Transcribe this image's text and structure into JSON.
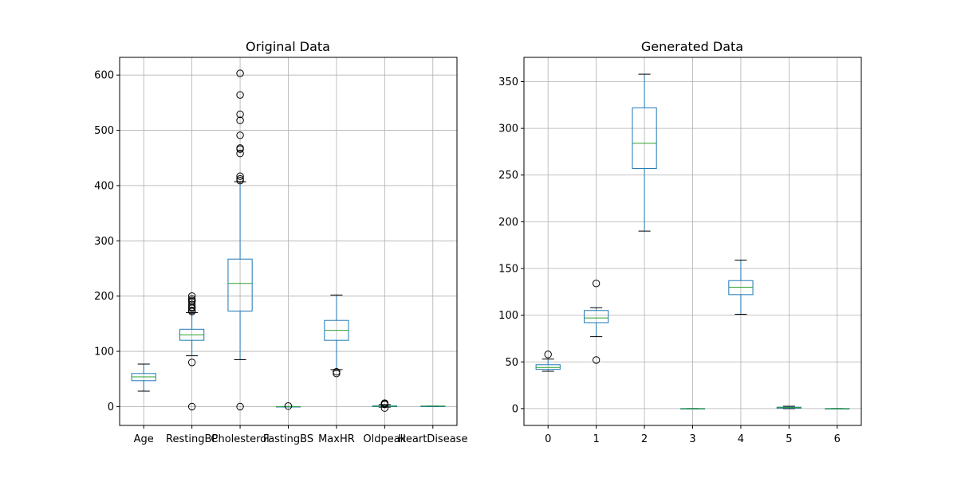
{
  "chart_data": [
    {
      "type": "boxplot",
      "title": "Original Data",
      "xlabel": "",
      "ylabel": "",
      "grid": true,
      "categories": [
        "Age",
        "RestingBP",
        "Cholesterol",
        "FastingBS",
        "MaxHR",
        "Oldpeak",
        "HeartDisease"
      ],
      "ylim": [
        -34,
        632
      ],
      "yticks": [
        0,
        100,
        200,
        300,
        400,
        500,
        600
      ],
      "box_color": "#1f77b4",
      "median_color": "#2ca02c",
      "boxes": [
        {
          "name": "Age",
          "whisker_low": 28,
          "q1": 47,
          "median": 54,
          "q3": 60,
          "whisker_high": 77,
          "outliers": []
        },
        {
          "name": "RestingBP",
          "whisker_low": 92,
          "q1": 120,
          "median": 130,
          "q3": 140,
          "whisker_high": 170,
          "outliers": [
            0,
            80,
            172,
            174,
            178,
            180,
            185,
            190,
            192,
            195,
            200
          ]
        },
        {
          "name": "Cholesterol",
          "whisker_low": 85,
          "q1": 173,
          "median": 223,
          "q3": 267,
          "whisker_high": 407,
          "outliers": [
            0,
            409,
            412,
            417,
            458,
            466,
            468,
            491,
            518,
            529,
            564,
            603
          ]
        },
        {
          "name": "FastingBS",
          "whisker_low": 0,
          "q1": 0,
          "median": 0,
          "q3": 0,
          "whisker_high": 0,
          "outliers": [
            1
          ]
        },
        {
          "name": "MaxHR",
          "whisker_low": 67,
          "q1": 120,
          "median": 138,
          "q3": 156,
          "whisker_high": 202,
          "outliers": [
            60,
            63
          ]
        },
        {
          "name": "Oldpeak",
          "whisker_low": -1,
          "q1": 0,
          "median": 0.6,
          "q3": 1.5,
          "whisker_high": 3.7,
          "outliers": [
            -2.6,
            4.0,
            4.4,
            5.6,
            6.2
          ]
        },
        {
          "name": "HeartDisease",
          "whisker_low": 0,
          "q1": 0,
          "median": 1,
          "q3": 1,
          "whisker_high": 1,
          "outliers": []
        }
      ]
    },
    {
      "type": "boxplot",
      "title": "Generated Data",
      "xlabel": "",
      "ylabel": "",
      "grid": true,
      "categories": [
        "0",
        "1",
        "2",
        "3",
        "4",
        "5",
        "6"
      ],
      "ylim": [
        -18,
        376
      ],
      "yticks": [
        0,
        50,
        100,
        150,
        200,
        250,
        300,
        350
      ],
      "box_color": "#1f77b4",
      "median_color": "#2ca02c",
      "boxes": [
        {
          "name": "0",
          "whisker_low": 40,
          "q1": 42,
          "median": 44,
          "q3": 47,
          "whisker_high": 53,
          "outliers": [
            58
          ]
        },
        {
          "name": "1",
          "whisker_low": 77,
          "q1": 92,
          "median": 97,
          "q3": 105,
          "whisker_high": 108,
          "outliers": [
            52,
            134
          ]
        },
        {
          "name": "2",
          "whisker_low": 190,
          "q1": 257,
          "median": 284,
          "q3": 322,
          "whisker_high": 358,
          "outliers": []
        },
        {
          "name": "3",
          "whisker_low": 0,
          "q1": 0,
          "median": 0,
          "q3": 0,
          "whisker_high": 0,
          "outliers": []
        },
        {
          "name": "4",
          "whisker_low": 101,
          "q1": 122,
          "median": 130,
          "q3": 137,
          "whisker_high": 159,
          "outliers": []
        },
        {
          "name": "5",
          "whisker_low": 0,
          "q1": 0.5,
          "median": 1,
          "q3": 1.5,
          "whisker_high": 2.5,
          "outliers": []
        },
        {
          "name": "6",
          "whisker_low": 0,
          "q1": 0,
          "median": 0,
          "q3": 0,
          "whisker_high": 0,
          "outliers": []
        }
      ]
    }
  ]
}
